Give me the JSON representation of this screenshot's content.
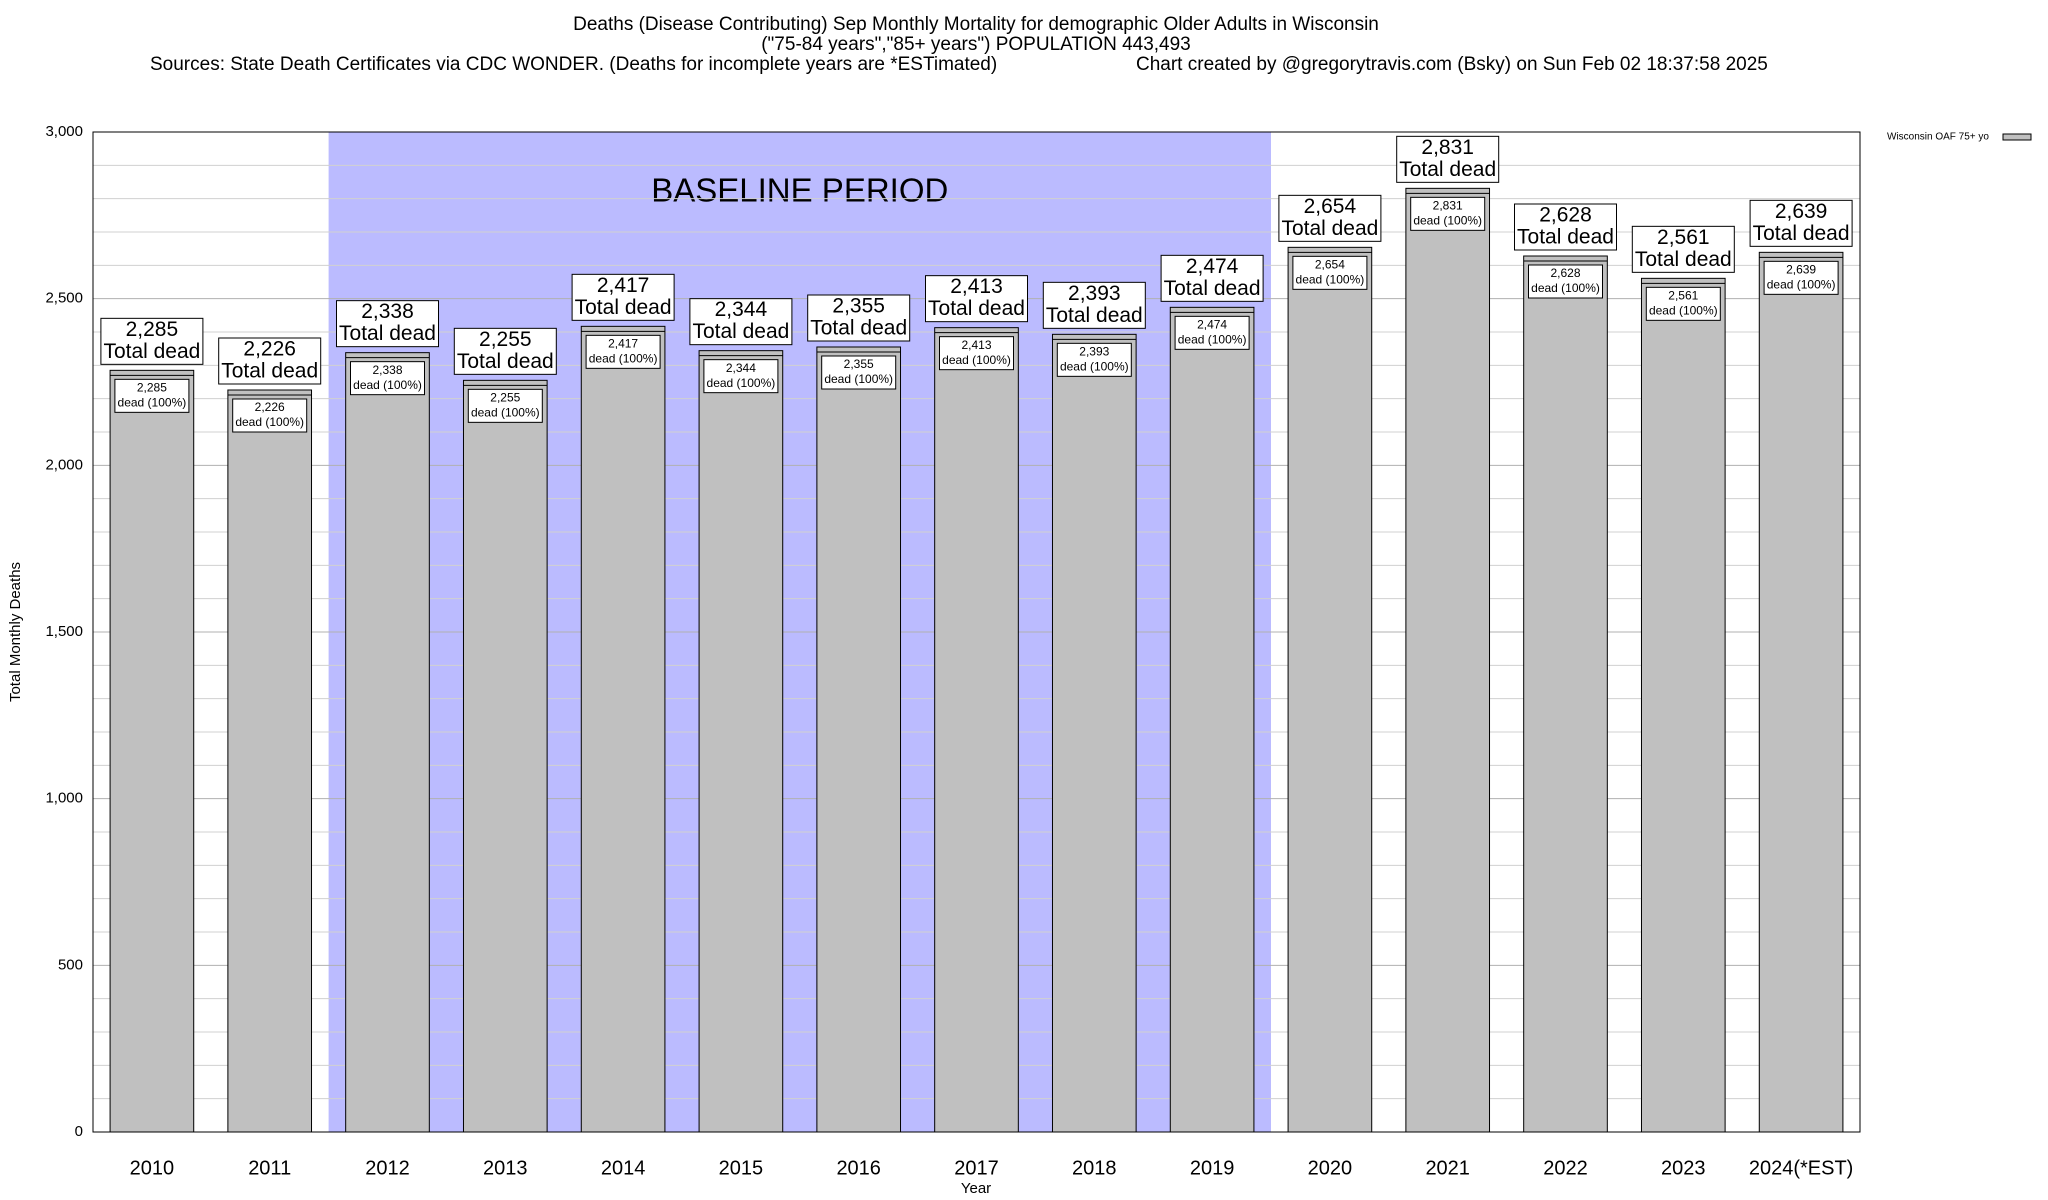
{
  "chart_data": {
    "type": "bar",
    "title": "Deaths (Disease Contributing) Sep Monthly Mortality for demographic Older Adults in Wisconsin",
    "subtitle": "(\"75-84 years\",\"85+ years\") POPULATION 443,493",
    "source": "Sources: State Death Certificates via CDC WONDER. (Deaths for incomplete years are *ESTimated)",
    "credit": "Chart created by @gregorytravis.com (Bsky) on Sun Feb 02 18:37:58 2025",
    "x_label": "Year",
    "y_label": "Total Monthly Deaths",
    "categories": [
      "2010",
      "2011",
      "2012",
      "2013",
      "2014",
      "2015",
      "2016",
      "2017",
      "2018",
      "2019",
      "2020",
      "2021",
      "2022",
      "2023",
      "2024(*EST)"
    ],
    "series": [
      {
        "name": "Wisconsin OAF 75+ yo",
        "color": "#c0c0c0",
        "values": [
          2285,
          2226,
          2338,
          2255,
          2417,
          2344,
          2355,
          2413,
          2393,
          2474,
          2654,
          2831,
          2628,
          2561,
          2639
        ],
        "value_labels": [
          "2,285",
          "2,226",
          "2,338",
          "2,255",
          "2,417",
          "2,344",
          "2,355",
          "2,413",
          "2,393",
          "2,474",
          "2,654",
          "2,831",
          "2,628",
          "2,561",
          "2,639"
        ]
      }
    ],
    "total_label": "Total dead",
    "share_label": "dead (100%)",
    "ylim": [
      0,
      3000
    ],
    "yticks": [
      0,
      500,
      {
        "value": 1000,
        "label": "1,000"
      },
      {
        "value": 1500,
        "label": "1,500"
      },
      {
        "value": 2000,
        "label": "2,000"
      },
      {
        "value": 2500,
        "label": "2,500"
      },
      {
        "value": 3000,
        "label": "3,000"
      }
    ],
    "minor_yticks": [
      100,
      200,
      300,
      400,
      600,
      700,
      800,
      900,
      1100,
      1200,
      1300,
      1400,
      1600,
      1700,
      1800,
      1900,
      2100,
      2200,
      2300,
      2400,
      2600,
      2700,
      2800,
      2900
    ],
    "grid": true,
    "legend": "top-right",
    "shaded_span": {
      "from": "2012",
      "to": "2019",
      "label": "BASELINE PERIOD",
      "color": "#bbbbff"
    }
  }
}
